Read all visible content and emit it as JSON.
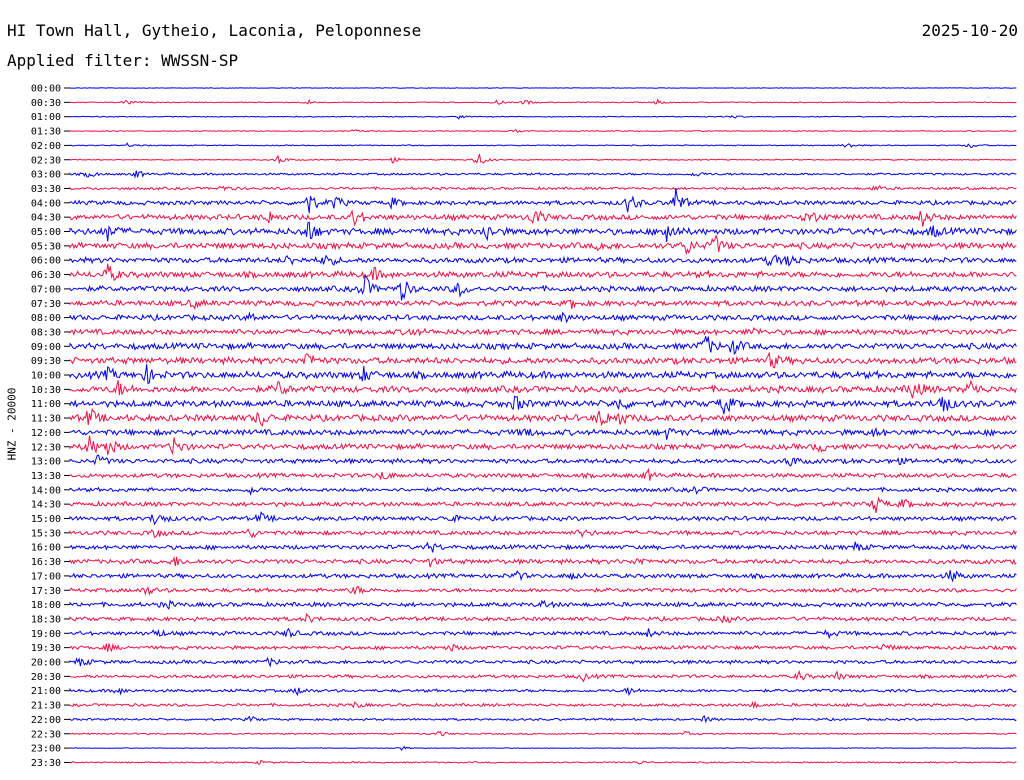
{
  "header": {
    "station": "HI Town Hall, Gytheio, Laconia, Peloponnese",
    "date": "2025-10-20",
    "filter": "Applied filter: WWSSN-SP"
  },
  "chart_data": {
    "type": "line",
    "title": "HI Town Hall, Gytheio, Laconia, Peloponnese",
    "subtitle": "Applied filter: WWSSN-SP",
    "ylabel": "HNZ - 20000",
    "xlabel": "",
    "grid": false,
    "colors": [
      "#0000ee",
      "#ee1144"
    ],
    "categories": [
      "00:00",
      "00:30",
      "01:00",
      "01:30",
      "02:00",
      "02:30",
      "03:00",
      "03:30",
      "04:00",
      "04:30",
      "05:00",
      "05:30",
      "06:00",
      "06:30",
      "07:00",
      "07:30",
      "08:00",
      "08:30",
      "09:00",
      "09:30",
      "10:00",
      "10:30",
      "11:00",
      "11:30",
      "12:00",
      "12:30",
      "13:00",
      "13:30",
      "14:00",
      "14:30",
      "15:00",
      "15:30",
      "16:00",
      "16:30",
      "17:00",
      "17:30",
      "18:00",
      "18:30",
      "19:00",
      "19:30",
      "20:00",
      "20:30",
      "21:00",
      "21:30",
      "22:00",
      "22:30",
      "23:00",
      "23:30"
    ],
    "noise": [
      0.3,
      0.5,
      0.5,
      0.5,
      0.6,
      0.6,
      1.2,
      1.4,
      2.4,
      3.0,
      3.6,
      3.4,
      3.0,
      3.4,
      3.0,
      3.0,
      3.0,
      3.0,
      3.4,
      3.6,
      3.8,
      3.6,
      3.6,
      3.6,
      3.2,
      3.0,
      2.6,
      2.4,
      2.2,
      2.4,
      2.4,
      2.4,
      2.4,
      2.6,
      2.4,
      2.2,
      2.4,
      2.2,
      2.2,
      2.0,
      2.0,
      1.8,
      1.6,
      1.6,
      1.2,
      0.8,
      0.3,
      0.8
    ],
    "bursts": [
      [],
      [
        [
          0.06,
          3
        ],
        [
          0.25,
          3
        ],
        [
          0.45,
          3
        ],
        [
          0.48,
          3
        ],
        [
          0.62,
          3
        ]
      ],
      [
        [
          0.41,
          2
        ],
        [
          0.7,
          2
        ]
      ],
      [
        [
          0.3,
          2
        ],
        [
          0.47,
          2
        ]
      ],
      [
        [
          0.06,
          2
        ],
        [
          0.82,
          4
        ],
        [
          0.95,
          3
        ]
      ],
      [
        [
          0.22,
          5
        ],
        [
          0.43,
          9
        ],
        [
          0.34,
          3
        ]
      ],
      [
        [
          0.02,
          4
        ],
        [
          0.07,
          4
        ],
        [
          0.66,
          3
        ]
      ],
      [
        [
          0.16,
          3
        ],
        [
          0.85,
          3
        ]
      ],
      [
        [
          0.25,
          16
        ],
        [
          0.28,
          7
        ],
        [
          0.59,
          12
        ],
        [
          0.64,
          16
        ],
        [
          0.34,
          5
        ]
      ],
      [
        [
          0.21,
          6
        ],
        [
          0.3,
          10
        ],
        [
          0.49,
          10
        ],
        [
          0.78,
          10
        ],
        [
          0.9,
          10
        ]
      ],
      [
        [
          0.04,
          9
        ],
        [
          0.25,
          14
        ],
        [
          0.44,
          9
        ],
        [
          0.63,
          14
        ],
        [
          0.91,
          6
        ]
      ],
      [
        [
          0.65,
          10
        ],
        [
          0.68,
          12
        ],
        [
          0.56,
          5
        ]
      ],
      [
        [
          0.27,
          8
        ],
        [
          0.74,
          8
        ],
        [
          0.76,
          7
        ],
        [
          0.23,
          5
        ]
      ],
      [
        [
          0.04,
          10
        ],
        [
          0.32,
          6
        ]
      ],
      [
        [
          0.31,
          16
        ],
        [
          0.35,
          12
        ],
        [
          0.41,
          8
        ]
      ],
      [
        [
          0.13,
          4
        ],
        [
          0.53,
          4
        ]
      ],
      [
        [
          0.52,
          5
        ],
        [
          0.19,
          4
        ]
      ],
      [
        [
          0.36,
          4
        ],
        [
          0.72,
          4
        ]
      ],
      [
        [
          0.67,
          14
        ],
        [
          0.7,
          8
        ]
      ],
      [
        [
          0.25,
          10
        ],
        [
          0.74,
          9
        ]
      ],
      [
        [
          0.08,
          10
        ],
        [
          0.31,
          7
        ],
        [
          0.04,
          6
        ]
      ],
      [
        [
          0.05,
          8
        ],
        [
          0.22,
          8
        ],
        [
          0.89,
          12
        ],
        [
          0.95,
          10
        ]
      ],
      [
        [
          0.47,
          8
        ],
        [
          0.58,
          7
        ],
        [
          0.69,
          12
        ],
        [
          0.92,
          14
        ]
      ],
      [
        [
          0.02,
          11
        ],
        [
          0.2,
          10
        ],
        [
          0.56,
          10
        ],
        [
          0.58,
          7
        ]
      ],
      [
        [
          0.48,
          5
        ],
        [
          0.63,
          5
        ],
        [
          0.85,
          4
        ]
      ],
      [
        [
          0.02,
          11
        ],
        [
          0.04,
          10
        ],
        [
          0.11,
          11
        ],
        [
          0.79,
          6
        ]
      ],
      [
        [
          0.03,
          6
        ],
        [
          0.76,
          6
        ],
        [
          0.87,
          4
        ]
      ],
      [
        [
          0.33,
          5
        ],
        [
          0.61,
          5
        ]
      ],
      [
        [
          0.19,
          4
        ],
        [
          0.66,
          4
        ]
      ],
      [
        [
          0.85,
          10
        ],
        [
          0.88,
          5
        ]
      ],
      [
        [
          0.09,
          10
        ],
        [
          0.2,
          6
        ],
        [
          0.4,
          4
        ]
      ],
      [
        [
          0.09,
          4
        ],
        [
          0.19,
          5
        ],
        [
          0.54,
          4
        ]
      ],
      [
        [
          0.38,
          6
        ],
        [
          0.83,
          5
        ]
      ],
      [
        [
          0.11,
          5
        ],
        [
          0.38,
          4
        ],
        [
          0.6,
          4
        ]
      ],
      [
        [
          0.47,
          5
        ],
        [
          0.53,
          4
        ],
        [
          0.93,
          7
        ]
      ],
      [
        [
          0.08,
          5
        ],
        [
          0.3,
          5
        ]
      ],
      [
        [
          0.1,
          4
        ],
        [
          0.5,
          4
        ]
      ],
      [
        [
          0.25,
          4
        ],
        [
          0.69,
          4
        ]
      ],
      [
        [
          0.09,
          5
        ],
        [
          0.23,
          5
        ],
        [
          0.61,
          4
        ],
        [
          0.8,
          4
        ]
      ],
      [
        [
          0.04,
          4
        ],
        [
          0.4,
          4
        ],
        [
          0.86,
          4
        ]
      ],
      [
        [
          0.01,
          5
        ],
        [
          0.21,
          4
        ]
      ],
      [
        [
          0.54,
          5
        ],
        [
          0.77,
          5
        ],
        [
          0.81,
          4
        ]
      ],
      [
        [
          0.05,
          4
        ],
        [
          0.24,
          4
        ],
        [
          0.59,
          4
        ]
      ],
      [
        [
          0.3,
          3
        ],
        [
          0.72,
          3
        ]
      ],
      [
        [
          0.19,
          3
        ],
        [
          0.67,
          3
        ]
      ],
      [
        [
          0.39,
          3
        ],
        [
          0.65,
          3
        ]
      ],
      [
        [
          0.35,
          2
        ]
      ],
      [
        [
          0.2,
          2
        ],
        [
          0.6,
          2
        ]
      ]
    ]
  }
}
